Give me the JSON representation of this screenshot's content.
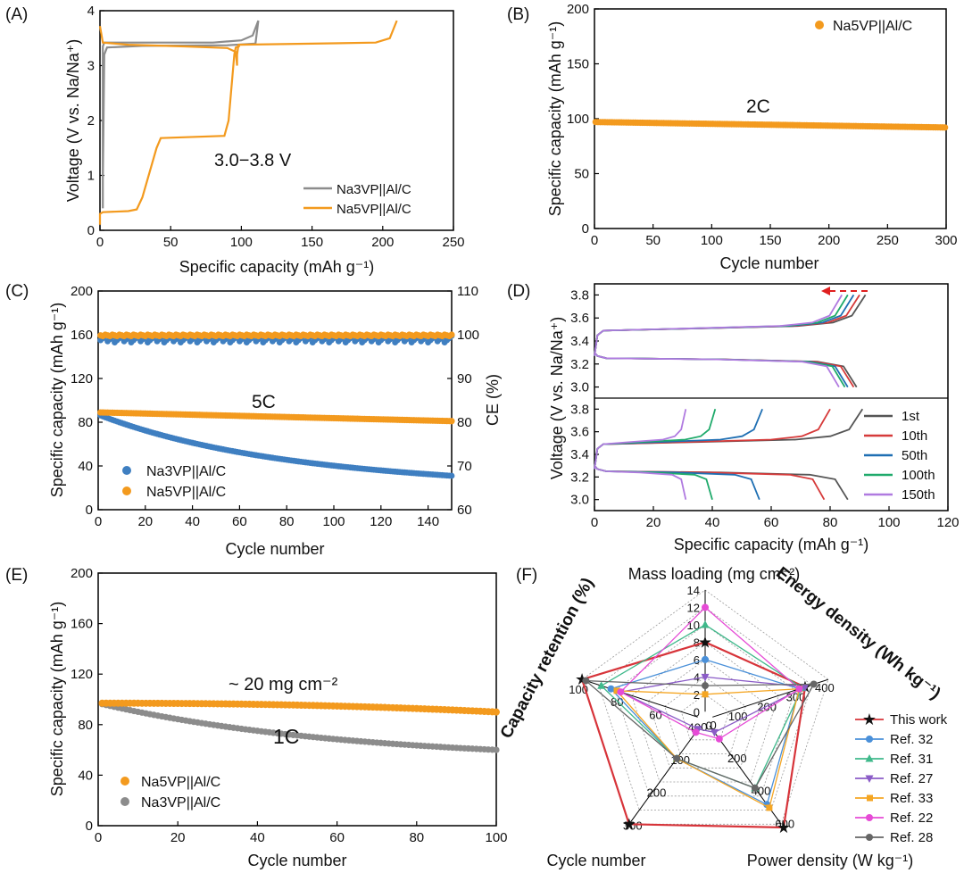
{
  "colors": {
    "gray": "#8c8c8c",
    "orange": "#f39a1e",
    "blue": "#3f7fc1",
    "red": "#d7343a",
    "dark_gray": "#555555",
    "c10th": "#d63a3a",
    "c50th": "#1f6fb3",
    "c100th": "#1faa6b",
    "c150th": "#b07ae0"
  },
  "chart_data": [
    {
      "panel": "(A)",
      "type": "line",
      "xlabel": "Specific capacity (mAh g⁻¹)",
      "ylabel": "Voltage (V vs. Na/Na⁺)",
      "xlim": [
        0,
        250
      ],
      "ylim": [
        0,
        4
      ],
      "xticks": [
        "0",
        "50",
        "100",
        "150",
        "200",
        "250"
      ],
      "yticks": [
        "0",
        "1",
        "2",
        "3",
        "4"
      ],
      "annotation": "3.0−3.8 V",
      "legend": [
        "Na3VP||Al/C",
        "Na5VP||Al/C"
      ],
      "series": [
        {
          "name": "Na3VP||Al/C",
          "color": "gray",
          "points": [
            [
              2,
              0.4
            ],
            [
              2,
              3.35
            ],
            [
              3,
              3.42
            ],
            [
              30,
              3.42
            ],
            [
              80,
              3.42
            ],
            [
              100,
              3.46
            ],
            [
              108,
              3.55
            ],
            [
              112,
              3.82
            ],
            [
              110,
              3.4
            ],
            [
              90,
              3.37
            ],
            [
              30,
              3.36
            ],
            [
              5,
              3.33
            ],
            [
              3,
              3.2
            ],
            [
              2,
              0.9
            ]
          ]
        },
        {
          "name": "Na5VP||Al/C",
          "color": "orange",
          "points": [
            [
              0,
              3.72
            ],
            [
              2,
              3.42
            ],
            [
              20,
              3.38
            ],
            [
              60,
              3.35
            ],
            [
              90,
              3.32
            ],
            [
              96,
              3.25
            ],
            [
              97,
              3.0
            ],
            [
              97,
              3.2
            ],
            [
              98,
              3.38
            ],
            [
              150,
              3.4
            ],
            [
              195,
              3.42
            ],
            [
              205,
              3.5
            ],
            [
              210,
              3.82
            ]
          ]
        },
        {
          "name": "Na5VP||Al/C discharge",
          "color": "orange",
          "points": [
            [
              0,
              0.1
            ],
            [
              0,
              0.3
            ],
            [
              2,
              0.33
            ],
            [
              20,
              0.35
            ],
            [
              26,
              0.38
            ],
            [
              30,
              0.6
            ],
            [
              40,
              1.5
            ],
            [
              43,
              1.68
            ],
            [
              88,
              1.72
            ],
            [
              91,
              2.0
            ],
            [
              95,
              3.2
            ],
            [
              96,
              3.33
            ],
            [
              99,
              3.36
            ]
          ]
        }
      ]
    },
    {
      "panel": "(B)",
      "type": "scatter",
      "xlabel": "Cycle number",
      "ylabel": "Specific capacity (mAh g⁻¹)",
      "xlim": [
        0,
        300
      ],
      "ylim": [
        0,
        200
      ],
      "xticks": [
        "0",
        "50",
        "100",
        "150",
        "200",
        "250",
        "300"
      ],
      "yticks": [
        "0",
        "50",
        "100",
        "150",
        "200"
      ],
      "annotation": "2C",
      "legend": [
        "Na5VP||Al/C"
      ],
      "series": [
        {
          "name": "Na5VP||Al/C",
          "color": "orange",
          "start": 97,
          "end": 92,
          "n": 300
        }
      ]
    },
    {
      "panel": "(C)",
      "type": "scatter",
      "xlabel": "Cycle number",
      "ylabel": "Specific capacity (mAh g⁻¹)",
      "y2label": "CE (%)",
      "xlim": [
        0,
        150
      ],
      "ylim": [
        0,
        200
      ],
      "y2lim": [
        60,
        110
      ],
      "xticks": [
        "0",
        "20",
        "40",
        "60",
        "80",
        "100",
        "120",
        "140"
      ],
      "yticks": [
        "0",
        "40",
        "80",
        "120",
        "160",
        "200"
      ],
      "y2ticks": [
        "60",
        "70",
        "80",
        "90",
        "100",
        "110"
      ],
      "annotation": "5C",
      "legend": [
        "Na3VP||Al/C",
        "Na5VP||Al/C"
      ],
      "series": [
        {
          "name": "Na3VP||Al/C",
          "color": "blue",
          "start": 87,
          "end": 31
        },
        {
          "name": "Na5VP||Al/C",
          "color": "orange",
          "start": 89,
          "end": 81
        },
        {
          "name": "Na3VP CE",
          "color": "blue",
          "ce": 99
        },
        {
          "name": "Na5VP CE",
          "color": "orange",
          "ce": 100
        }
      ]
    },
    {
      "panel": "(D)",
      "type": "line",
      "xlabel": "Specific capacity (mAh g⁻¹)",
      "ylabel": "Voltage (V vs. Na/Na⁺)",
      "xlim": [
        0,
        120
      ],
      "ylim": [
        2.9,
        3.9
      ],
      "xticks": [
        "0",
        "20",
        "40",
        "60",
        "80",
        "100",
        "120"
      ],
      "yticks": [
        "3.0",
        "3.2",
        "3.4",
        "3.6",
        "3.8"
      ],
      "legend": [
        "1st",
        "10th",
        "50th",
        "100th",
        "150th"
      ],
      "top_caps": [
        92,
        90,
        88,
        86,
        84
      ],
      "top_dis": [
        89,
        88,
        86,
        85,
        83
      ],
      "bottom_caps": [
        91,
        80,
        57,
        41,
        31
      ],
      "bottom_dis": [
        86,
        78,
        56,
        40,
        31
      ]
    },
    {
      "panel": "(E)",
      "type": "scatter",
      "xlabel": "Cycle number",
      "ylabel": "Specific capacity (mAh g⁻¹)",
      "xlim": [
        0,
        100
      ],
      "ylim": [
        0,
        200
      ],
      "xticks": [
        "0",
        "20",
        "40",
        "60",
        "80",
        "100"
      ],
      "yticks": [
        "0",
        "40",
        "80",
        "120",
        "160",
        "200"
      ],
      "annotations": [
        "~ 20 mg cm⁻²",
        "1C"
      ],
      "legend": [
        "Na5VP||Al/C",
        "Na3VP||Al/C"
      ],
      "series": [
        {
          "name": "Na5VP||Al/C",
          "color": "orange",
          "start": 97,
          "end": 90
        },
        {
          "name": "Na3VP||Al/C",
          "color": "gray",
          "start": 97,
          "end": 60
        }
      ]
    },
    {
      "panel": "(F)",
      "type": "radar",
      "axes": [
        {
          "label": "Mass loading (mg cm⁻²)",
          "max": 14,
          "ticks": [
            "0",
            "2",
            "4",
            "6",
            "8",
            "10",
            "12",
            "14"
          ]
        },
        {
          "label": "Energy density (Wh kg⁻¹)",
          "max": 400,
          "ticks": [
            "0",
            "100",
            "200",
            "300",
            "400"
          ]
        },
        {
          "label": "Power density (W kg⁻¹)",
          "max": 600,
          "ticks": [
            "0",
            "200",
            "400",
            "600"
          ]
        },
        {
          "label": "Cycle number",
          "max": 300,
          "ticks": [
            "0",
            "100",
            "200",
            "300"
          ]
        },
        {
          "label": "Capacity retention (%)",
          "min": 40,
          "max": 100,
          "ticks": [
            "40",
            "60",
            "80",
            "100"
          ]
        }
      ],
      "series": [
        {
          "name": "This work",
          "color": "#d7343a",
          "marker": "star",
          "values": [
            8,
            320,
            620,
            300,
            100
          ]
        },
        {
          "name": "Ref. 32",
          "color": "#4a90d9",
          "marker": "circle",
          "values": [
            6,
            300,
            480,
            100,
            85
          ]
        },
        {
          "name": "Ref. 31",
          "color": "#3fb98b",
          "marker": "triangle",
          "values": [
            10,
            310,
            380,
            100,
            90
          ]
        },
        {
          "name": "Ref. 27",
          "color": "#8b5cc7",
          "marker": "tri-down",
          "values": [
            4,
            320,
            40,
            10,
            80
          ]
        },
        {
          "name": "Ref. 33",
          "color": "#f5a623",
          "marker": "square",
          "values": [
            2,
            300,
            500,
            100,
            82
          ]
        },
        {
          "name": "Ref. 22",
          "color": "#e64bd6",
          "marker": "circle",
          "values": [
            12,
            300,
            80,
            20,
            80
          ]
        },
        {
          "name": "Ref. 28",
          "color": "#666666",
          "marker": "circle",
          "values": [
            3,
            350,
            380,
            100,
            98
          ]
        }
      ]
    }
  ],
  "panel_labels": [
    "(A)",
    "(B)",
    "(C)",
    "(D)",
    "(E)",
    "(F)"
  ]
}
